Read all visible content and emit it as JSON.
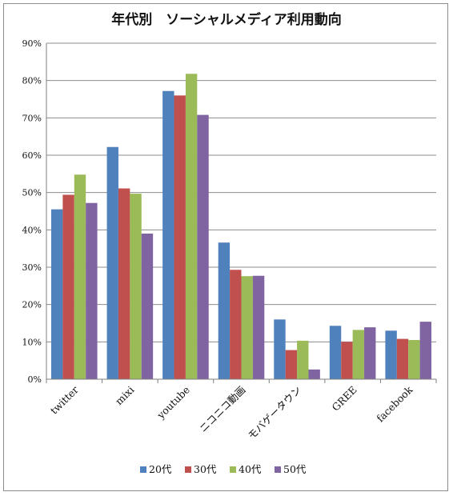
{
  "chart_data": {
    "type": "bar",
    "title": "年代別　ソーシャルメディア利用動向",
    "categories": [
      "twitter",
      "mixi",
      "youtube",
      "ニコニコ動画",
      "モバゲータウン",
      "GREE",
      "facebook"
    ],
    "series": [
      {
        "name": "20代",
        "color": "#4f81bd",
        "values": [
          45.5,
          62.2,
          77.2,
          36.6,
          16.0,
          14.3,
          13.0
        ]
      },
      {
        "name": "30代",
        "color": "#c0504d",
        "values": [
          49.4,
          51.1,
          76.0,
          29.3,
          7.8,
          10.0,
          10.8
        ]
      },
      {
        "name": "40代",
        "color": "#9bbb59",
        "values": [
          54.8,
          49.7,
          81.8,
          27.6,
          10.3,
          13.2,
          10.5
        ]
      },
      {
        "name": "50代",
        "color": "#8064a2",
        "values": [
          47.2,
          39.0,
          70.8,
          27.7,
          2.6,
          13.9,
          15.4
        ]
      }
    ],
    "ylim": [
      0,
      90
    ],
    "y_ticks": [
      "0%",
      "10%",
      "20%",
      "30%",
      "40%",
      "50%",
      "60%",
      "70%",
      "80%",
      "90%"
    ],
    "grid": true,
    "legend_position": "bottom"
  }
}
